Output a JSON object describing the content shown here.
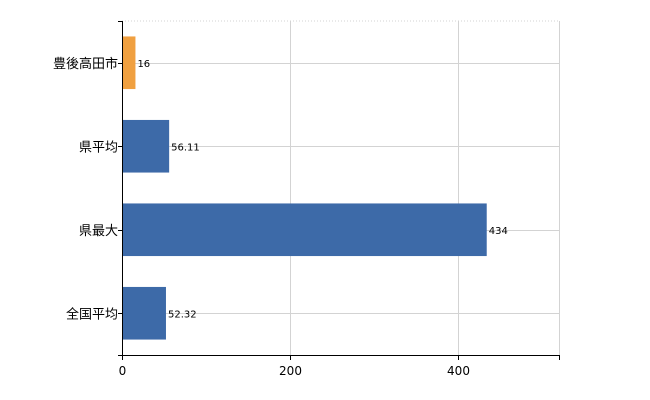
{
  "chart_data": {
    "type": "bar",
    "orientation": "horizontal",
    "categories": [
      "豊後高田市",
      "県平均",
      "県最大",
      "全国平均"
    ],
    "values": [
      16,
      56.11,
      434,
      52.32
    ],
    "value_labels": [
      "16",
      "56.11",
      "434",
      "52.32"
    ],
    "bar_colors": [
      "#f0a040",
      "#3d6aa8",
      "#3d6aa8",
      "#3d6aa8"
    ],
    "title": "",
    "xlabel": "",
    "ylabel": "",
    "xlim": [
      0,
      520
    ],
    "x_ticks": [
      0,
      200,
      400
    ],
    "x_tick_labels": [
      "0",
      "200",
      "400"
    ],
    "grid": true
  },
  "colors": {
    "highlight": "#f0a040",
    "bar": "#3d6aa8",
    "grid": "#d3d3d3",
    "axis": "#000000"
  }
}
